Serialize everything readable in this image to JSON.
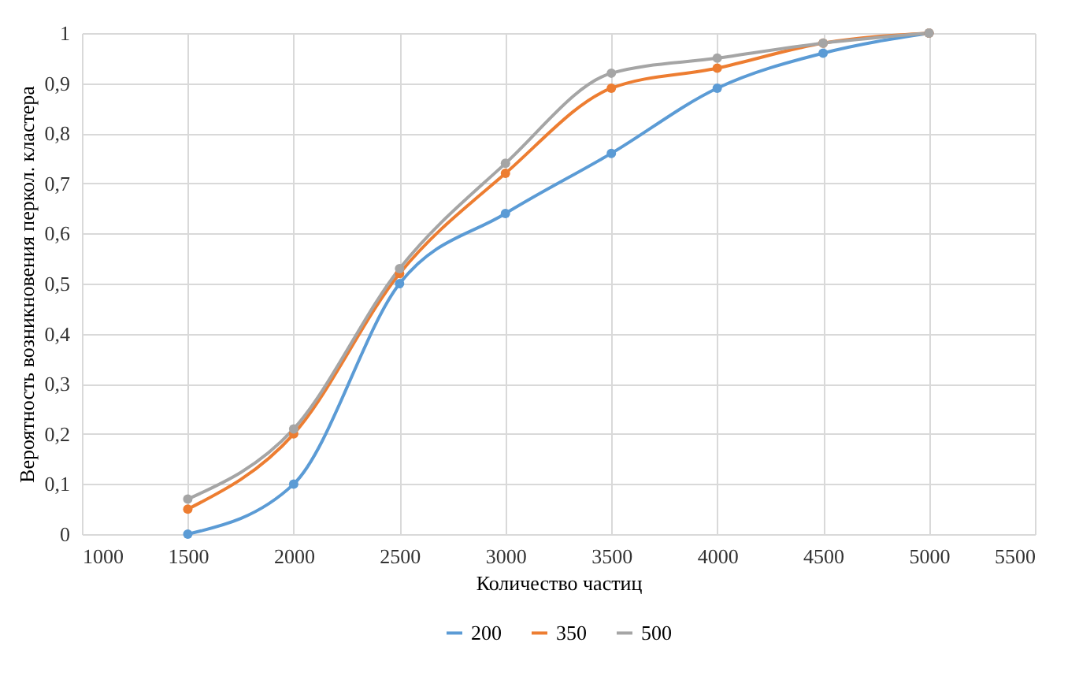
{
  "chart_data": {
    "type": "line",
    "xlabel": "Количество частиц",
    "ylabel": "Вероятность возникновения перкол. кластера",
    "x": [
      1500,
      2000,
      2500,
      3000,
      3500,
      4000,
      4500,
      5000
    ],
    "series": [
      {
        "name": "200",
        "color": "#5b9bd5",
        "values": [
          0,
          0.1,
          0.5,
          0.64,
          0.76,
          0.89,
          0.96,
          1
        ]
      },
      {
        "name": "350",
        "color": "#ed7d31",
        "values": [
          0.05,
          0.2,
          0.52,
          0.72,
          0.89,
          0.93,
          0.98,
          1
        ]
      },
      {
        "name": "500",
        "color": "#a5a5a5",
        "values": [
          0.07,
          0.21,
          0.53,
          0.74,
          0.92,
          0.95,
          0.98,
          1
        ]
      }
    ],
    "xlim": [
      1000,
      5500
    ],
    "xticks": [
      1000,
      1500,
      2000,
      2500,
      3000,
      3500,
      4000,
      4500,
      5000,
      5500
    ],
    "ylim": [
      0,
      1
    ],
    "yticks": [
      0,
      {
        "value": 0.1,
        "label": "0,1"
      },
      {
        "value": 0.2,
        "label": "0,2"
      },
      {
        "value": 0.3,
        "label": "0,3"
      },
      {
        "value": 0.4,
        "label": "0,4"
      },
      {
        "value": 0.5,
        "label": "0,5"
      },
      {
        "value": 0.6,
        "label": "0,6"
      },
      {
        "value": 0.7,
        "label": "0,7"
      },
      {
        "value": 0.8,
        "label": "0,8"
      },
      {
        "value": 0.9,
        "label": "0,9"
      },
      1
    ],
    "grid": true,
    "legend": "bottom",
    "marker": "circle",
    "line_style": "solid"
  }
}
